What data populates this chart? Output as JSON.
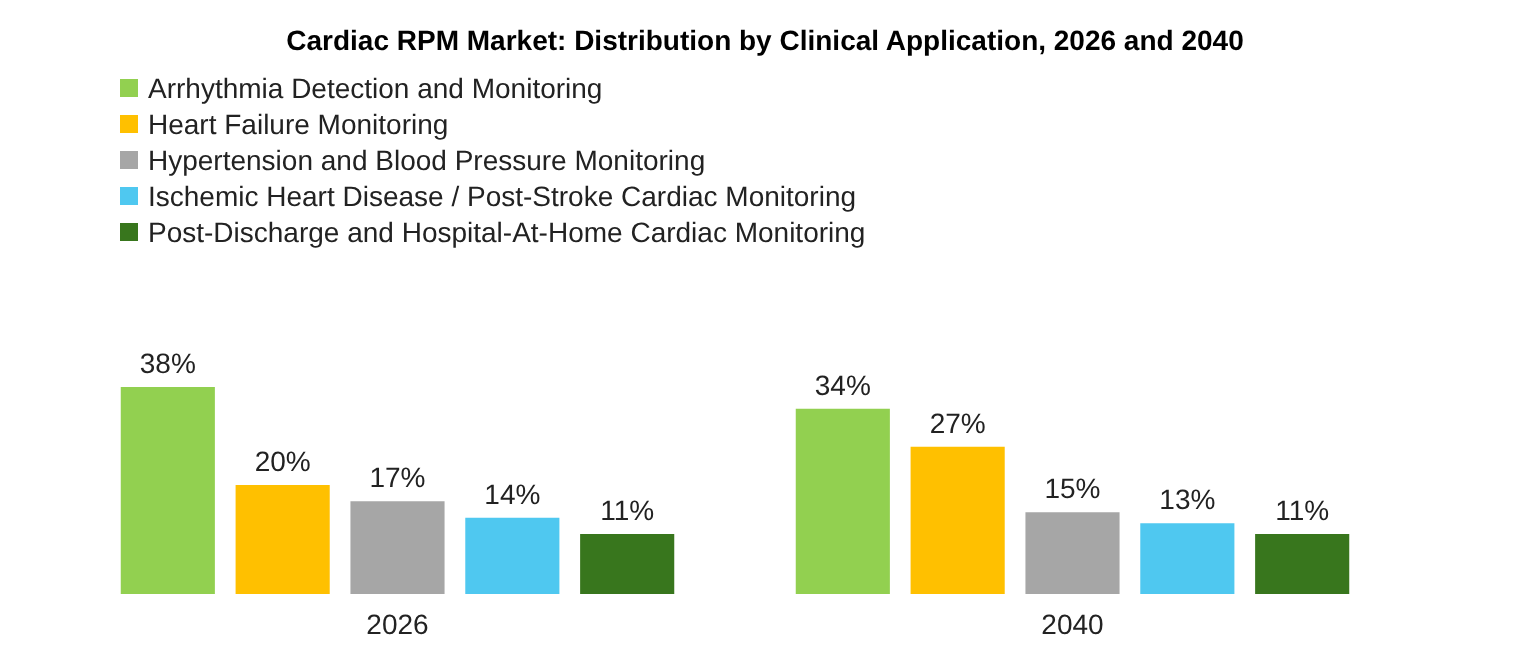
{
  "chart_data": {
    "type": "bar",
    "title": "Cardiac RPM Market: Distribution by Clinical Application, 2026 and 2040",
    "categories": [
      "2026",
      "2040"
    ],
    "legend": "top left",
    "series": [
      {
        "name": "Arrhythmia Detection and Monitoring",
        "color": "#92d050",
        "values": [
          38,
          34
        ],
        "value_labels": [
          "38%",
          "34%"
        ]
      },
      {
        "name": "Heart Failure Monitoring",
        "color": "#ffc000",
        "values": [
          20,
          27
        ],
        "value_labels": [
          "20%",
          "27%"
        ]
      },
      {
        "name": "Hypertension and Blood Pressure Monitoring",
        "color": "#a6a6a6",
        "values": [
          17,
          15
        ],
        "value_labels": [
          "17%",
          "15%"
        ]
      },
      {
        "name": "Ischemic Heart Disease / Post-Stroke Cardiac Monitoring",
        "color": "#4fc8f0",
        "values": [
          14,
          13
        ],
        "value_labels": [
          "14%",
          "13%"
        ]
      },
      {
        "name": "Post-Discharge and Hospital-At-Home Cardiac Monitoring",
        "color": "#38761d",
        "values": [
          11,
          11
        ],
        "value_labels": [
          "11%",
          "11%"
        ]
      }
    ]
  }
}
